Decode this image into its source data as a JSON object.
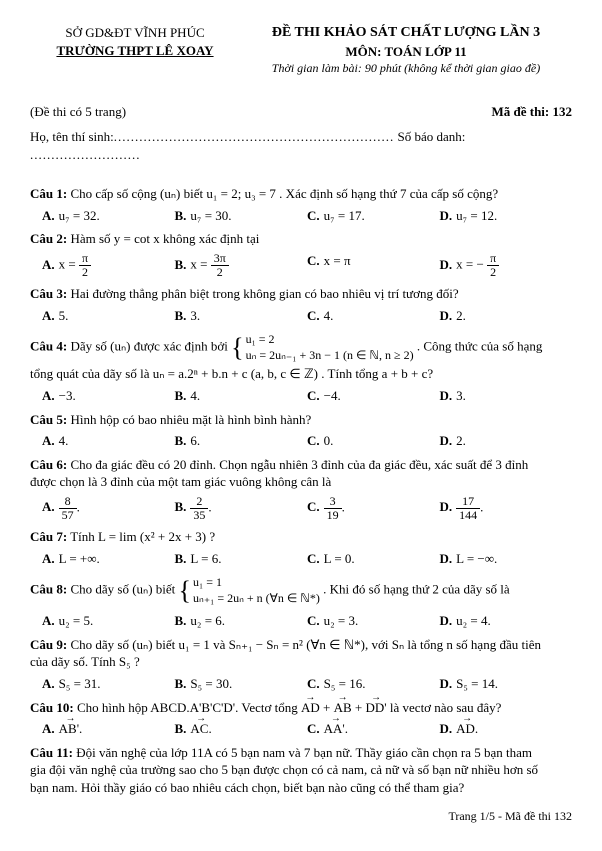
{
  "header": {
    "dept": "SỞ GD&ĐT VĨNH PHÚC",
    "school": "TRƯỜNG THPT LÊ XOAY",
    "title": "ĐỀ THI KHẢO SÁT CHẤT LƯỢNG LẦN 3",
    "subject": "MÔN: TOÁN LỚP 11",
    "time": "Thời gian làm bài: 90 phút (không kể thời gian giao đề)"
  },
  "meta": {
    "pages": "(Đề thi có 5 trang)",
    "code_label": "Mã đề thi: 132",
    "name": "Họ, tên thí sinh:",
    "id": "Số báo danh:"
  },
  "questions": [
    {
      "label": "Câu 1:",
      "text_pre": "Cho cấp số cộng ",
      "seq": "(uₙ)",
      "text_mid": " biết u₁ = 2; u₃ = 7 . Xác định số hạng thứ 7 của cấp số cộng?",
      "choices": [
        "u₇ = 32.",
        "u₇ = 30.",
        "u₇ = 17.",
        "u₇ = 12."
      ]
    },
    {
      "label": "Câu 2:",
      "text": "Hàm số  y = cot x  không xác định tại",
      "choices_frac": true,
      "choices": [
        {
          "pre": "x = ",
          "num": "π",
          "den": "2",
          "post": ""
        },
        {
          "pre": "x = ",
          "num": "3π",
          "den": "2",
          "post": ""
        },
        {
          "plain": "x = π"
        },
        {
          "pre": "x = − ",
          "num": "π",
          "den": "2",
          "post": ""
        }
      ]
    },
    {
      "label": "Câu 3:",
      "text": "Hai đường thẳng phân biệt trong không gian có bao nhiêu vị trí tương đối?",
      "choices": [
        "5.",
        "3.",
        "4.",
        "2."
      ]
    },
    {
      "label": "Câu 4:",
      "part1_pre": "Dãy số ",
      "part1_seq": "(uₙ)",
      "part1_mid": " được xác định bởi ",
      "brace_top": "u₁ = 2",
      "brace_bot": "uₙ = 2uₙ₋₁ + 3n − 1 (n ∈ ℕ, n ≥ 2)",
      "part1_post": " . Công thức của số hạng",
      "part2": "tổng quát của dãy số là uₙ = a.2ⁿ + b.n + c (a, b, c ∈ ℤ) . Tính tổng a + b + c?",
      "choices": [
        "−3.",
        "4.",
        "−4.",
        "3."
      ]
    },
    {
      "label": "Câu 5:",
      "text": "Hình hộp có bao nhiêu mặt là hình bình hành?",
      "choices": [
        "4.",
        "6.",
        "0.",
        "2."
      ]
    },
    {
      "label": "Câu 6:",
      "line1": "Cho đa giác đều có 20 đỉnh. Chọn ngẫu nhiên 3 đỉnh của đa giác đều, xác suất để 3 đỉnh",
      "line2": "được chọn là 3 đỉnh của một tam giác vuông không cân là",
      "choices_frac": true,
      "choices": [
        {
          "num": "8",
          "den": "57",
          "post": "."
        },
        {
          "num": "2",
          "den": "35",
          "post": "."
        },
        {
          "num": "3",
          "den": "19",
          "post": "."
        },
        {
          "num": "17",
          "den": "144",
          "post": "."
        }
      ]
    },
    {
      "label": "Câu 7:",
      "text": "Tính  L = lim (x² + 2x + 3) ?",
      "sub": "x→+∞",
      "choices": [
        "L = +∞.",
        "L = 6.",
        "L = 0.",
        "L = −∞."
      ]
    },
    {
      "label": "Câu 8:",
      "part1_pre": "Cho dãy số ",
      "part1_seq": "(uₙ)",
      "part1_mid": " biết ",
      "brace_top": "u₁ = 1",
      "brace_bot": "uₙ₊₁ = 2uₙ + n (∀n ∈ ℕ*)",
      "part1_post": " . Khi đó số hạng thứ 2 của dãy số là",
      "choices": [
        "u₂ = 5.",
        "u₂ = 6.",
        "u₂ = 3.",
        "u₂ = 4."
      ]
    },
    {
      "label": "Câu 9:",
      "line1": "Cho dãy số (uₙ) biết u₁ = 1 và Sₙ₊₁ − Sₙ = n² (∀n ∈ ℕ*), với Sₙ là tổng n số hạng đầu tiên",
      "line2": "của dãy số. Tính S₅ ?",
      "choices": [
        "S₅ = 31.",
        "S₅ = 30.",
        "S₅ = 16.",
        "S₅ = 14."
      ]
    },
    {
      "label": "Câu 10:",
      "text_vec": true,
      "text": "Cho hình hộp ABCD.A'B'C'D'. Vectơ tổng ",
      "vec_sum": "AD + AB + DD'",
      "text_post": " là vectơ nào sau đây?",
      "choices_vec": true,
      "choices": [
        "AB'.",
        "AC.",
        "AA'.",
        "AD."
      ]
    },
    {
      "label": "Câu 11:",
      "line1": "Đội văn nghệ của lớp 11A có 5 bạn nam và 7 bạn nữ. Thầy giáo cần chọn ra 5 bạn tham",
      "line2": "gia đội văn nghệ của trường sao cho 5 bạn được chọn có cả nam, cả nữ và số bạn nữ nhiều hơn số",
      "line3": "bạn nam. Hỏi thầy giáo có bao nhiêu cách chọn, biết bạn nào cũng có thể tham gia?"
    }
  ],
  "choice_labels": [
    "A.",
    "B.",
    "C.",
    "D."
  ],
  "footer": "Trang 1/5 - Mã đề thi 132"
}
